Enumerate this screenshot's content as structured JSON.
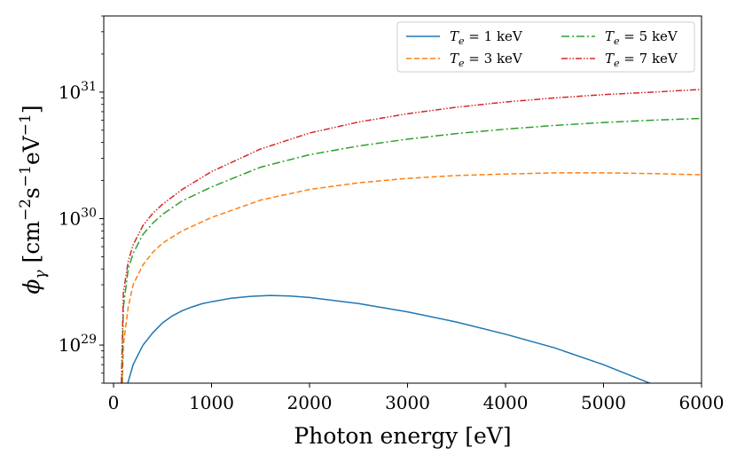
{
  "chart_data": {
    "type": "line",
    "xlabel": "Photon energy [eV]",
    "ylabel_symbol": "ϕ",
    "ylabel_subscript": "γ",
    "ylabel_units_open": " [cm",
    "ylabel_exp1": "−2",
    "ylabel_s": "s",
    "ylabel_exp2": "−1",
    "ylabel_ev": "eV",
    "ylabel_exp3": "−1",
    "ylabel_units_close": "]",
    "yscale": "log",
    "xlim": [
      -100,
      6000
    ],
    "ylim": [
      5e+28,
      4e+31
    ],
    "x_ticks": [
      0,
      1000,
      2000,
      3000,
      4000,
      5000,
      6000
    ],
    "x_tick_labels": [
      "0",
      "1000",
      "2000",
      "3000",
      "4000",
      "5000",
      "6000"
    ],
    "y_ticks": [
      {
        "base": "10",
        "exp": "29",
        "value": 1e+29
      },
      {
        "base": "10",
        "exp": "30",
        "value": 1e+30
      },
      {
        "base": "10",
        "exp": "31",
        "value": 1e+31
      }
    ],
    "legend_location": "upper-right",
    "series": [
      {
        "name": "1 keV",
        "label_var": "T",
        "label_sub": "e",
        "label_eq": " =  1 keV",
        "color": "#1f77b4",
        "dash": "solid",
        "x": [
          145,
          200,
          300,
          400,
          500,
          600,
          700,
          800,
          900,
          1000,
          1200,
          1400,
          1600,
          1800,
          2000,
          2500,
          3000,
          3500,
          4000,
          4500,
          5000,
          5500
        ],
        "y": [
          5e+28,
          7e+28,
          1e+29,
          1.25e+29,
          1.5e+29,
          1.7e+29,
          1.87e+29,
          2e+29,
          2.12e+29,
          2.2e+29,
          2.35e+29,
          2.43e+29,
          2.47e+29,
          2.44e+29,
          2.38e+29,
          2.13e+29,
          1.83e+29,
          1.52e+29,
          1.22e+29,
          9.5e+28,
          7e+28,
          4.9e+28
        ]
      },
      {
        "name": "3 keV",
        "label_var": "T",
        "label_sub": "e",
        "label_eq": " =  3 keV",
        "color": "#ff7f0e",
        "dash": "dashed",
        "x": [
          90,
          100,
          150,
          200,
          300,
          400,
          500,
          700,
          1000,
          1500,
          2000,
          2500,
          3000,
          3500,
          4000,
          4500,
          5000,
          5500,
          6000
        ],
        "y": [
          5e+28,
          1e+29,
          2e+29,
          3e+29,
          4.3e+29,
          5.4e+29,
          6.4e+29,
          8e+29,
          1.02e+30,
          1.4e+30,
          1.7e+30,
          1.92e+30,
          2.08e+30,
          2.19e+30,
          2.25e+30,
          2.3e+30,
          2.3e+30,
          2.27e+30,
          2.22e+30
        ]
      },
      {
        "name": "5 keV",
        "label_var": "T",
        "label_sub": "e",
        "label_eq": " =  5 keV",
        "color": "#2ca02c",
        "dash": "dashdot",
        "x": [
          85,
          100,
          150,
          200,
          300,
          400,
          500,
          700,
          1000,
          1500,
          2000,
          2500,
          3000,
          3500,
          4000,
          4500,
          5000,
          5500,
          6000
        ],
        "y": [
          5e+28,
          2e+29,
          4e+29,
          5.3e+29,
          7.5e+29,
          9.2e+29,
          1.08e+30,
          1.38e+30,
          1.78e+30,
          2.55e+30,
          3.2e+30,
          3.75e+30,
          4.25e+30,
          4.7e+30,
          5.1e+30,
          5.45e+30,
          5.75e+30,
          6e+30,
          6.2e+30
        ]
      },
      {
        "name": "7 keV",
        "label_var": "T",
        "label_sub": "e",
        "label_eq": " =  7 keV",
        "color": "#d62728",
        "dash": "dashdotdot",
        "x": [
          80,
          100,
          150,
          200,
          300,
          400,
          500,
          700,
          1000,
          1500,
          2000,
          2500,
          3000,
          3500,
          4000,
          4500,
          5000,
          5500,
          6000
        ],
        "y": [
          5e+28,
          2.6e+29,
          4.6e+29,
          6.2e+29,
          8.8e+29,
          1.1e+30,
          1.3e+30,
          1.7e+30,
          2.35e+30,
          3.55e+30,
          4.75e+30,
          5.8e+30,
          6.75e+30,
          7.6e+30,
          8.35e+30,
          9e+30,
          9.55e+30,
          1e+31,
          1.05e+31
        ]
      }
    ]
  }
}
